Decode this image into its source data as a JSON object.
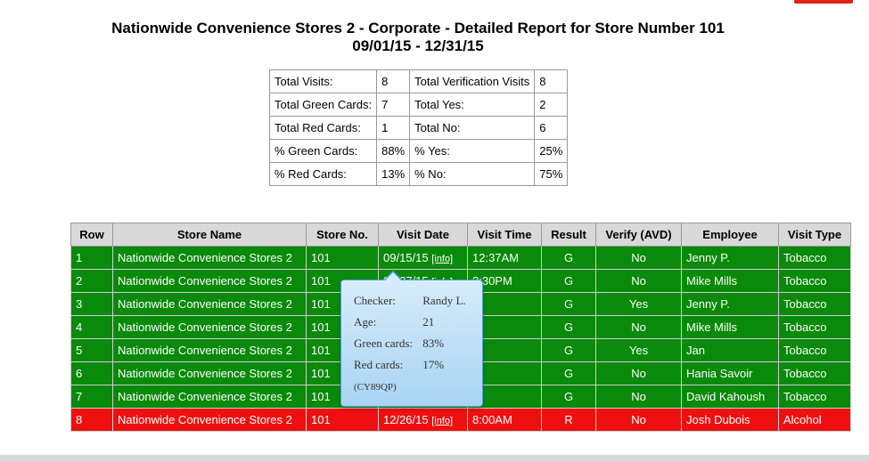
{
  "header": {
    "title": "Nationwide Convenience Stores 2 - Corporate - Detailed Report for Store Number 101",
    "date_range": "09/01/15 - 12/31/15"
  },
  "summary": {
    "rows": [
      [
        "Total Visits:",
        "8",
        "Total Verification Visits",
        "8"
      ],
      [
        "Total Green Cards:",
        "7",
        "Total Yes:",
        "2"
      ],
      [
        "Total Red Cards:",
        "1",
        "Total No:",
        "6"
      ],
      [
        "% Green Cards:",
        "88%",
        "% Yes:",
        "25%"
      ],
      [
        "% Red Cards:",
        "13%",
        "% No:",
        "75%"
      ]
    ]
  },
  "visits": {
    "headers": [
      "Row",
      "Store Name",
      "Store No.",
      "Visit Date",
      "Visit Time",
      "Result",
      "Verify (AVD)",
      "Employee",
      "Visit Type"
    ],
    "info_label": "[info]",
    "rows": [
      {
        "row": "1",
        "store": "Nationwide Convenience Stores 2",
        "no": "101",
        "date": "09/15/15",
        "time": "12:37AM",
        "result": "G",
        "verify": "No",
        "employee": "Jenny P.",
        "type": "Tobacco",
        "status": "green"
      },
      {
        "row": "2",
        "store": "Nationwide Convenience Stores 2",
        "no": "101",
        "date": "09/27/15",
        "time": "3:30PM",
        "result": "G",
        "verify": "No",
        "employee": "Mike Mills",
        "type": "Tobacco",
        "status": "green"
      },
      {
        "row": "3",
        "store": "Nationwide Convenience Stores 2",
        "no": "101",
        "date": "",
        "time": "",
        "result": "G",
        "verify": "Yes",
        "employee": "Jenny P.",
        "type": "Tobacco",
        "status": "green"
      },
      {
        "row": "4",
        "store": "Nationwide Convenience Stores 2",
        "no": "101",
        "date": "",
        "time": "",
        "result": "G",
        "verify": "No",
        "employee": "Mike Mills",
        "type": "Tobacco",
        "status": "green"
      },
      {
        "row": "5",
        "store": "Nationwide Convenience Stores 2",
        "no": "101",
        "date": "",
        "time": "",
        "result": "G",
        "verify": "Yes",
        "employee": "Jan",
        "type": "Tobacco",
        "status": "green"
      },
      {
        "row": "6",
        "store": "Nationwide Convenience Stores 2",
        "no": "101",
        "date": "",
        "time": "",
        "result": "G",
        "verify": "No",
        "employee": "Hania Savoir",
        "type": "Tobacco",
        "status": "green"
      },
      {
        "row": "7",
        "store": "Nationwide Convenience Stores 2",
        "no": "101",
        "date": "",
        "time": "",
        "result": "G",
        "verify": "No",
        "employee": "David Kahoush",
        "type": "Tobacco",
        "status": "green"
      },
      {
        "row": "8",
        "store": "Nationwide Convenience Stores 2",
        "no": "101",
        "date": "12/26/15",
        "time": "8:00AM",
        "result": "R",
        "verify": "No",
        "employee": "Josh Dubois",
        "type": "Alcohol",
        "status": "red"
      }
    ]
  },
  "popup": {
    "checker_label": "Checker:",
    "checker_value": "Randy L.",
    "age_label": "Age:",
    "age_value": "21",
    "green_label": "Green cards:",
    "green_value": "83%",
    "red_label": "Red cards:",
    "red_value": "17%",
    "code": "(CY89QP)"
  },
  "colors": {
    "green_row": "#0a8a0a",
    "red_row": "#ee1010",
    "header_bg": "#d9d9d9",
    "popup_border": "#4a9fd8",
    "corner_tab": "#e2231a"
  }
}
